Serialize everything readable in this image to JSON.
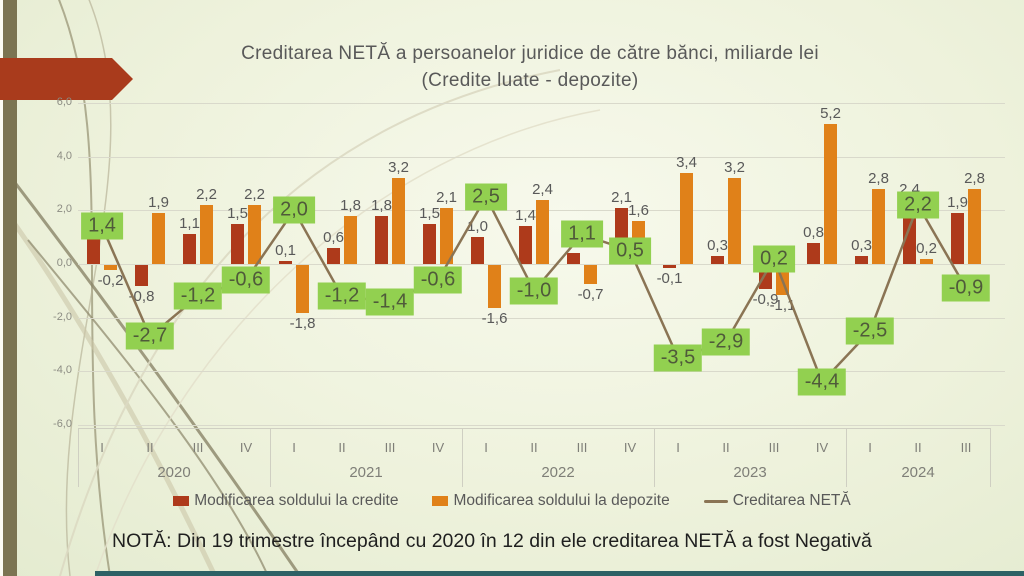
{
  "slide": {
    "title_line1": "Creditarea NETĂ a persoanelor juridice de către bănci, miliarde lei",
    "title_line2": "(Credite luate  - depozite)",
    "note": "NOTĂ: Din 19 trimestre începând cu 2020 în 12 din ele creditarea NETĂ a fost Negativă"
  },
  "legend": {
    "items": [
      {
        "label": "Modificarea soldului la credite",
        "marker": "square",
        "color": "#ae3a1b"
      },
      {
        "label": "Modificarea soldului la depozite",
        "marker": "square",
        "color": "#e08119"
      },
      {
        "label": "Creditarea NETĂ",
        "marker": "line",
        "color": "#8a7454"
      }
    ]
  },
  "theme": {
    "credite_color": "#ae3a1b",
    "depozite_color": "#e08119",
    "neta_line_color": "#8a7454",
    "neta_label_bg": "#92d050",
    "accent_olive": "#7b7452",
    "accent_teal": "#2d6165",
    "arrow_red": "#a93b1c"
  },
  "chart_data": {
    "type": "bar",
    "combo": "bar+line",
    "title": "Creditarea NETĂ a persoanelor juridice de către bănci, miliarde lei (Credite luate - depozite)",
    "xlabel": "",
    "ylabel": "",
    "units": "miliarde lei",
    "ylim": [
      -6,
      6
    ],
    "y_step": 2,
    "grid": true,
    "legend_position": "bottom",
    "y_ticks": [
      "6,0",
      "4,0",
      "2,0",
      "0,0",
      "-2,0",
      "-4,0",
      "-6,0"
    ],
    "x_groups": [
      {
        "year": "2020",
        "quarters": [
          "I",
          "II",
          "III",
          "IV"
        ]
      },
      {
        "year": "2021",
        "quarters": [
          "I",
          "II",
          "III",
          "IV"
        ]
      },
      {
        "year": "2022",
        "quarters": [
          "I",
          "II",
          "III",
          "IV"
        ]
      },
      {
        "year": "2023",
        "quarters": [
          "I",
          "II",
          "III",
          "IV"
        ]
      },
      {
        "year": "2024",
        "quarters": [
          "I",
          "II",
          "III"
        ]
      }
    ],
    "series": [
      {
        "name": "Modificarea soldului la credite",
        "type": "bar",
        "color": "#ae3a1b",
        "values": [
          1.2,
          -0.8,
          1.1,
          1.5,
          0.1,
          0.6,
          1.8,
          1.5,
          1.0,
          1.4,
          0.4,
          2.1,
          -0.1,
          0.3,
          -0.9,
          0.8,
          0.3,
          2.4,
          1.9
        ],
        "labels": [
          "",
          "-0,8",
          "1,1",
          "1,5",
          "0,1",
          "0,6",
          "1,8",
          "1,5",
          "1,0",
          "1,4",
          "",
          "2,1",
          "-0,1",
          "0,3",
          "-0,9",
          "0,8",
          "0,3",
          "2,4",
          "1,9"
        ]
      },
      {
        "name": "Modificarea soldului la depozite",
        "type": "bar",
        "color": "#e08119",
        "values": [
          -0.2,
          1.9,
          2.2,
          2.2,
          -1.8,
          1.8,
          3.2,
          2.1,
          -1.6,
          2.4,
          -0.7,
          1.6,
          3.4,
          3.2,
          -1.1,
          5.2,
          2.8,
          0.2,
          2.8
        ],
        "labels": [
          "-0,2",
          "1,9",
          "2,2",
          "2,2",
          "-1,8",
          "1,8",
          "3,2",
          "2,1",
          "-1,6",
          "2,4",
          "-0,7",
          "1,6",
          "3,4",
          "3,2",
          "-1,1",
          "5,2",
          "2,8",
          "0,2",
          "2,8"
        ]
      },
      {
        "name": "Creditarea NETĂ",
        "type": "line",
        "color": "#8a7454",
        "label_box_color": "#92d050",
        "values": [
          1.4,
          -2.7,
          -1.2,
          -0.6,
          2.0,
          -1.2,
          -1.4,
          -0.6,
          2.5,
          -1.0,
          1.1,
          0.5,
          -3.5,
          -2.9,
          0.2,
          -4.4,
          -2.5,
          2.2,
          -0.9
        ],
        "labels": [
          "1,4",
          "-2,7",
          "-1,2",
          "-0,6",
          "2,0",
          "-1,2",
          "-1,4",
          "-0,6",
          "2,5",
          "-1,0",
          "1,1",
          "0,5",
          "-3,5",
          "-2,9",
          "0,2",
          "-4,4",
          "-2,5",
          "2,2",
          "-0,9"
        ]
      }
    ]
  }
}
